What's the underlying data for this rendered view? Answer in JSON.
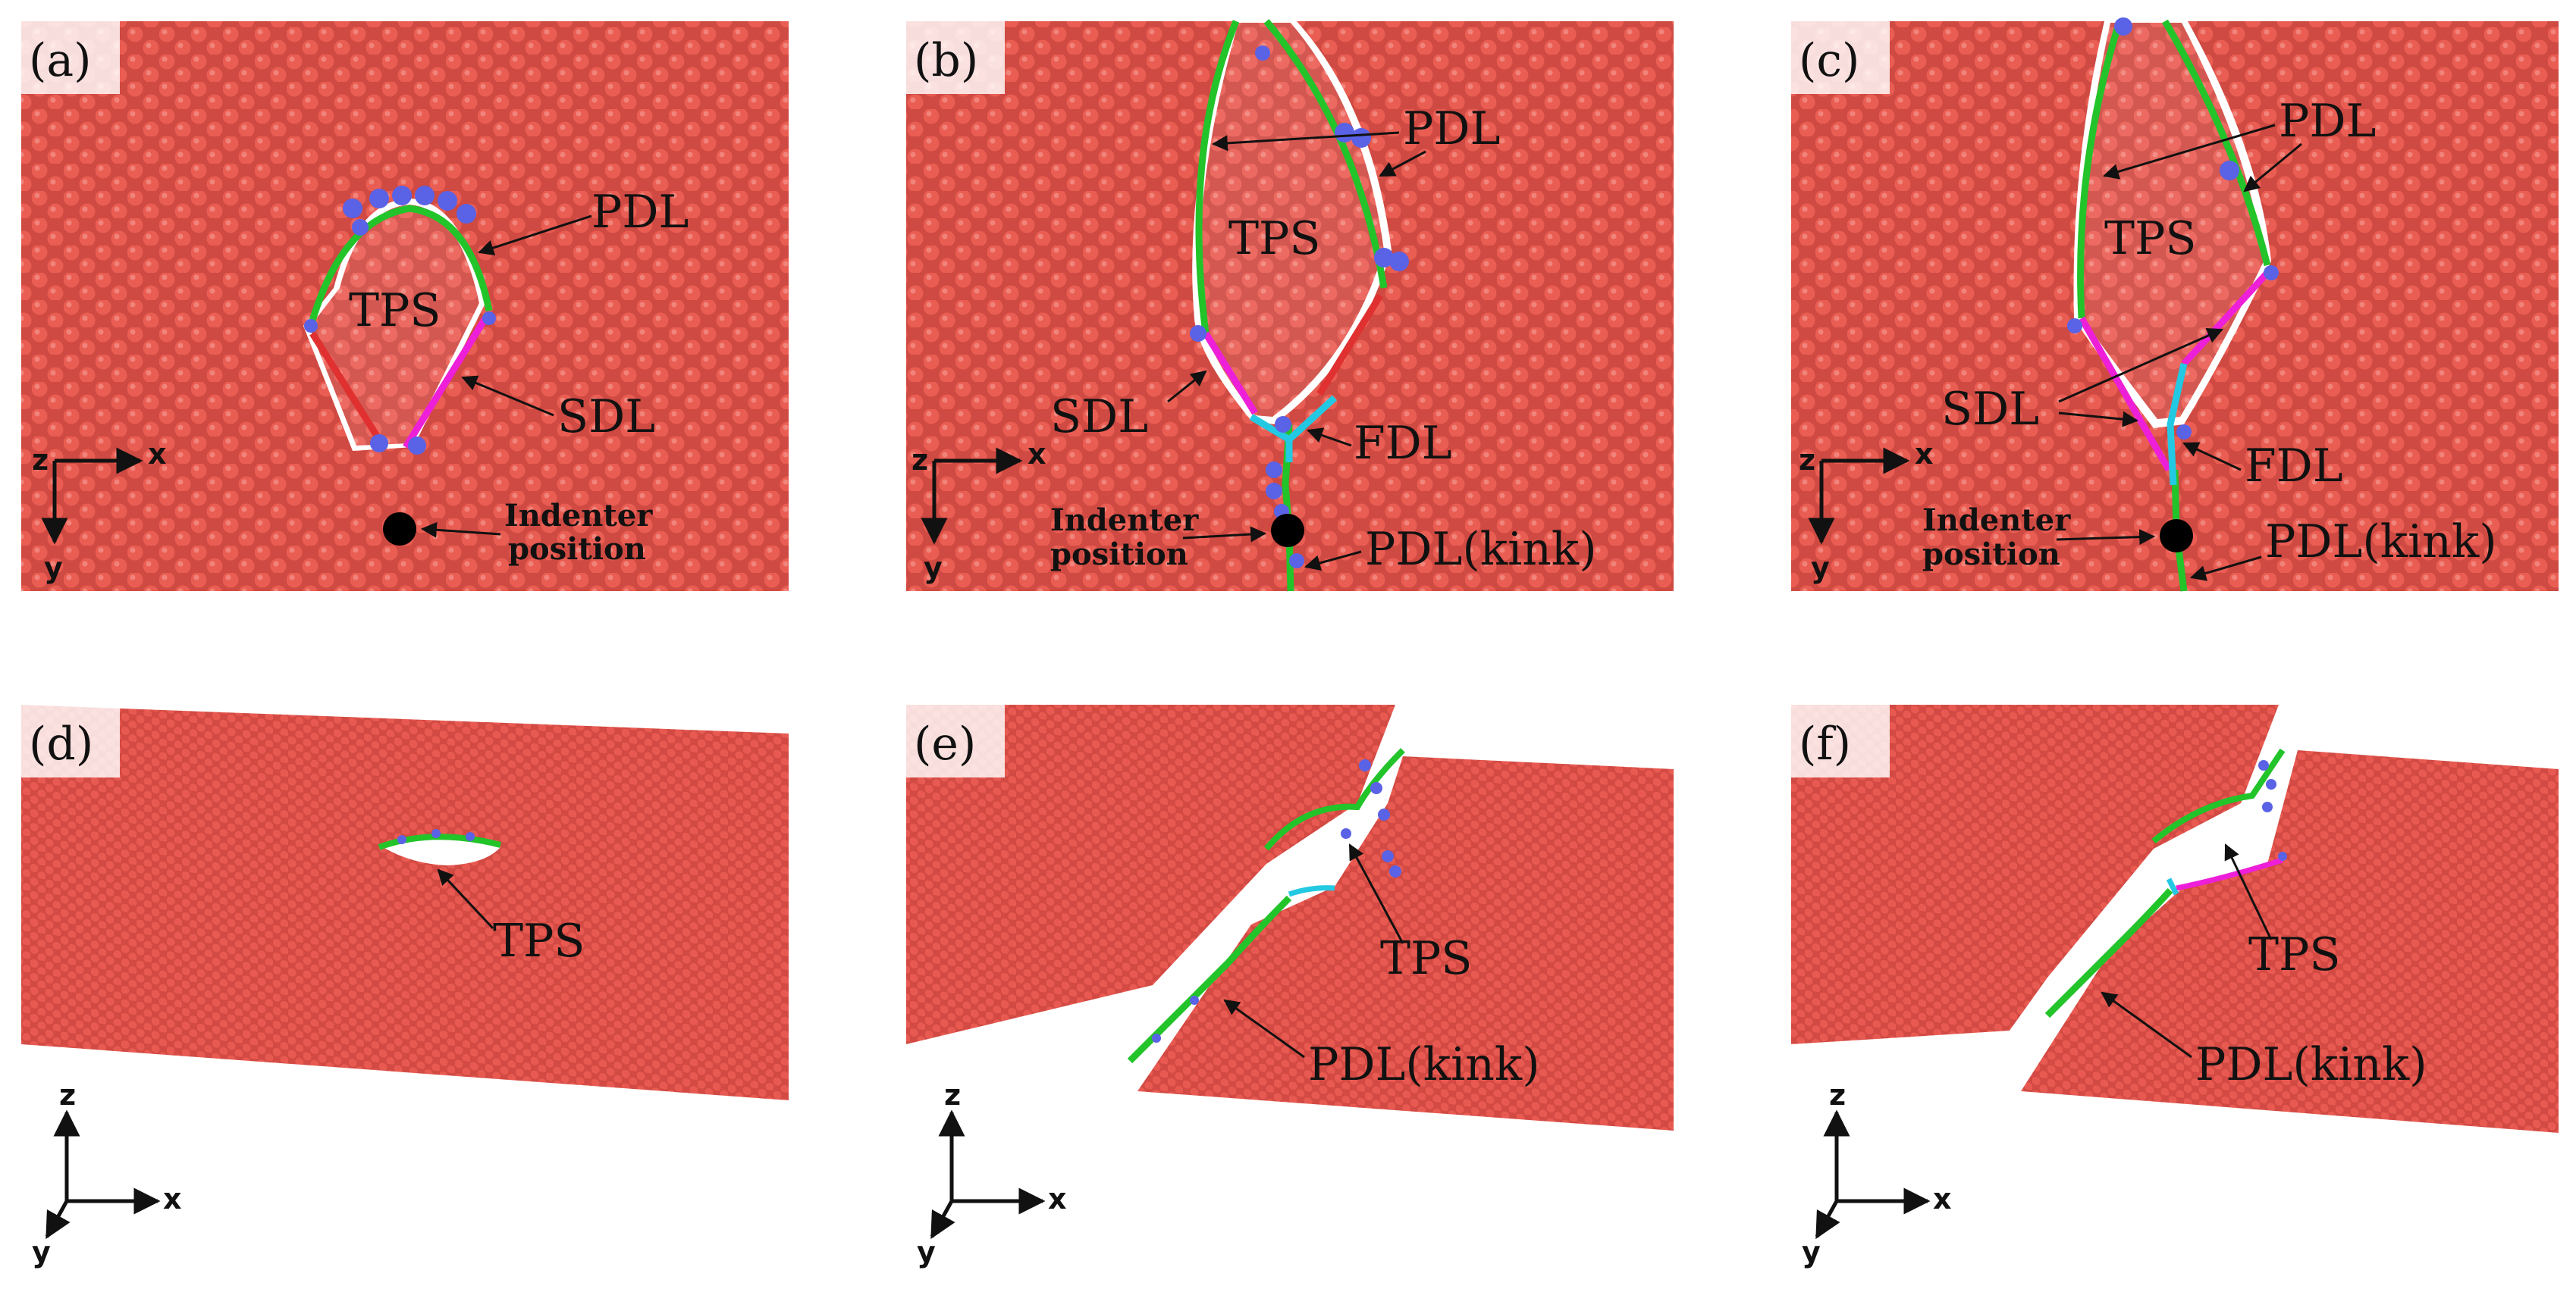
{
  "panels": [
    {
      "label": "(a)",
      "texts": {
        "pdl": "PDL",
        "tps": "TPS",
        "sdl": "SDL",
        "indenter_l1": "Indenter",
        "indenter_l2": "position"
      },
      "axes": {
        "h": "x",
        "v": "y",
        "o": "z"
      }
    },
    {
      "label": "(b)",
      "texts": {
        "pdl": "PDL",
        "tps": "TPS",
        "sdl": "SDL",
        "fdl": "FDL",
        "kink": "PDL(kink)",
        "indenter_l1": "Indenter",
        "indenter_l2": "position"
      },
      "axes": {
        "h": "x",
        "v": "y",
        "o": "z"
      }
    },
    {
      "label": "(c)",
      "texts": {
        "pdl": "PDL",
        "tps": "TPS",
        "sdl": "SDL",
        "fdl": "FDL",
        "kink": "PDL(kink)",
        "indenter_l1": "Indenter",
        "indenter_l2": "position"
      },
      "axes": {
        "h": "x",
        "v": "y",
        "o": "z"
      }
    },
    {
      "label": "(d)",
      "texts": {
        "tps": "TPS"
      },
      "axes": {
        "h": "x",
        "v": "z",
        "o": "y"
      }
    },
    {
      "label": "(e)",
      "texts": {
        "tps": "TPS",
        "kink": "PDL(kink)"
      },
      "axes": {
        "h": "x",
        "v": "z",
        "o": "y"
      }
    },
    {
      "label": "(f)",
      "texts": {
        "tps": "TPS",
        "kink": "PDL(kink)"
      },
      "axes": {
        "h": "x",
        "v": "z",
        "o": "y"
      }
    }
  ],
  "colors": {
    "atom": "#e8584f",
    "atom_dark": "#c9403a",
    "pdl": "#22c42a",
    "sdl": "#ee1fd8",
    "fdl": "#23c9e2",
    "stair": "#e03030",
    "defect": "#5a62e6",
    "indenter": "#000000"
  }
}
